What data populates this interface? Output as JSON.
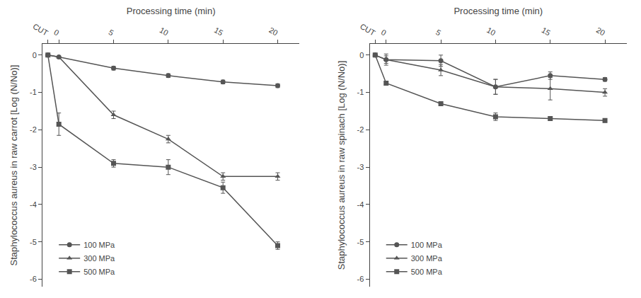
{
  "chart_data": [
    {
      "type": "line",
      "xlabel": "Processing time (min)",
      "ylabel": "Staphylococcus aureus in raw carrot [Log (N/No)]",
      "x": [
        -1,
        0,
        5,
        10,
        15,
        20
      ],
      "xlim": [
        -1.5,
        22
      ],
      "xticks": [
        {
          "value": -1,
          "label": "CUT"
        },
        0,
        5,
        10,
        15,
        20
      ],
      "ylim": [
        -6.2,
        0.3
      ],
      "yticks": [
        0,
        -1,
        -2,
        -3,
        -4,
        -5,
        -6
      ],
      "grid": false,
      "legend": "lower left",
      "series": [
        {
          "name": "100 MPa",
          "color": "#555555",
          "marker": "circle",
          "values": [
            0,
            -0.05,
            -0.35,
            -0.55,
            -0.72,
            -0.82
          ],
          "error": [
            0,
            0.0,
            0.05,
            0.05,
            0.05,
            0.05
          ]
        },
        {
          "name": "300 MPa",
          "color": "#555555",
          "marker": "triangle",
          "values": [
            0,
            -0.05,
            -1.6,
            -2.25,
            -3.25,
            -3.25
          ],
          "error": [
            0,
            0.0,
            0.1,
            0.1,
            0.1,
            0.1
          ]
        },
        {
          "name": "500 MPa",
          "color": "#555555",
          "marker": "square",
          "values": [
            0,
            -1.85,
            -2.9,
            -3.0,
            -3.55,
            -5.1
          ],
          "error": [
            0,
            0.3,
            0.1,
            0.2,
            0.15,
            0.1
          ]
        }
      ]
    },
    {
      "type": "line",
      "xlabel": "Processing time (min)",
      "ylabel": "Staphylococcus aureus in raw spinach [Log (N/No)]",
      "x": [
        -1,
        0,
        5,
        10,
        15,
        20
      ],
      "xlim": [
        -1.5,
        22
      ],
      "xticks": [
        {
          "value": -1,
          "label": "CUT"
        },
        0,
        5,
        10,
        15,
        20
      ],
      "ylim": [
        -6.2,
        0.3
      ],
      "yticks": [
        0,
        -1,
        -2,
        -3,
        -4,
        -5,
        -6
      ],
      "grid": false,
      "legend": "lower left",
      "series": [
        {
          "name": "100 MPa",
          "color": "#555555",
          "marker": "circle",
          "values": [
            0,
            -0.12,
            -0.15,
            -0.85,
            -0.55,
            -0.65
          ],
          "error": [
            0,
            0.15,
            0.15,
            0.2,
            0.1,
            0.05
          ]
        },
        {
          "name": "300 MPa",
          "color": "#555555",
          "marker": "triangle",
          "values": [
            0,
            -0.12,
            -0.4,
            -0.85,
            -0.9,
            -1.0
          ],
          "error": [
            0,
            0.1,
            0.15,
            0.2,
            0.3,
            0.1
          ]
        },
        {
          "name": "500 MPa",
          "color": "#555555",
          "marker": "square",
          "values": [
            0,
            -0.75,
            -1.3,
            -1.65,
            -1.7,
            -1.75
          ],
          "error": [
            0,
            0.05,
            0.05,
            0.1,
            0.05,
            0.05
          ]
        }
      ]
    }
  ]
}
